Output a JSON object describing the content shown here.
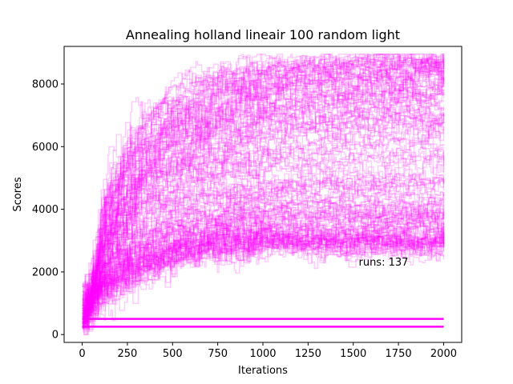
{
  "chart_data": {
    "type": "line",
    "title": "Annealing holland lineair 100 random light",
    "xlabel": "Iterations",
    "ylabel": "Scores",
    "xlim": [
      -100,
      2100
    ],
    "ylim": [
      -250,
      9200
    ],
    "xticks": [
      0,
      250,
      500,
      750,
      1000,
      1250,
      1500,
      1750,
      2000
    ],
    "yticks": [
      0,
      2000,
      4000,
      6000,
      8000
    ],
    "tick_labels_x": [
      "0",
      "250",
      "500",
      "750",
      "1000",
      "1250",
      "1500",
      "1750",
      "2000"
    ],
    "tick_labels_y": [
      "0",
      "2000",
      "4000",
      "6000",
      "8000"
    ],
    "annotation": "runs: 137",
    "annotation_position": [
      1530,
      2200
    ],
    "line_color": "#ff00ff",
    "line_alpha": 0.2,
    "grid": false,
    "legend": "none",
    "run_count": 137,
    "flat_runs": [
      {
        "start": 500,
        "value": 250
      },
      {
        "start": 500,
        "value": 500
      }
    ],
    "series": [
      {
        "x": [
          0,
          100,
          300,
          500,
          800,
          1000,
          1200,
          1500,
          1800,
          2000
        ],
        "values": [
          300,
          4800,
          6900,
          7900,
          8400,
          8600,
          8700,
          8750,
          8800,
          8800
        ]
      },
      {
        "x": [
          0,
          100,
          300,
          500,
          800,
          1000,
          1200,
          1500,
          1800,
          2000
        ],
        "values": [
          600,
          4300,
          6100,
          7100,
          7700,
          8000,
          8200,
          8350,
          8400,
          8400
        ]
      },
      {
        "x": [
          0,
          100,
          300,
          500,
          800,
          1000,
          1200,
          1500,
          1800,
          2000
        ],
        "values": [
          800,
          3800,
          5500,
          6400,
          6900,
          7300,
          7500,
          7700,
          7800,
          7800
        ]
      },
      {
        "x": [
          0,
          100,
          300,
          500,
          800,
          1000,
          1200,
          1500,
          1800,
          2000
        ],
        "values": [
          400,
          3200,
          4800,
          5600,
          6100,
          6400,
          6600,
          6700,
          6800,
          6800
        ]
      },
      {
        "x": [
          0,
          100,
          300,
          500,
          800,
          1000,
          1200,
          1500,
          1800,
          2000
        ],
        "values": [
          500,
          2700,
          3900,
          4500,
          4800,
          4900,
          5000,
          5100,
          5100,
          5100
        ]
      },
      {
        "x": [
          0,
          100,
          300,
          500,
          800,
          1000,
          1200,
          1500,
          1800,
          2000
        ],
        "values": [
          700,
          2100,
          3000,
          3500,
          3800,
          3900,
          4000,
          4000,
          4000,
          4000
        ]
      },
      {
        "x": [
          0,
          100,
          300,
          500,
          800,
          1000,
          1200,
          1500,
          1800,
          2000
        ],
        "values": [
          900,
          1800,
          2500,
          2900,
          3100,
          3200,
          3300,
          3300,
          3300,
          3300
        ]
      },
      {
        "x": [
          0,
          100,
          300,
          500,
          800,
          1000,
          1200,
          1500,
          1800,
          2000
        ],
        "values": [
          1200,
          1500,
          2200,
          2600,
          2800,
          2900,
          2900,
          2900,
          2900,
          2900
        ]
      }
    ]
  }
}
